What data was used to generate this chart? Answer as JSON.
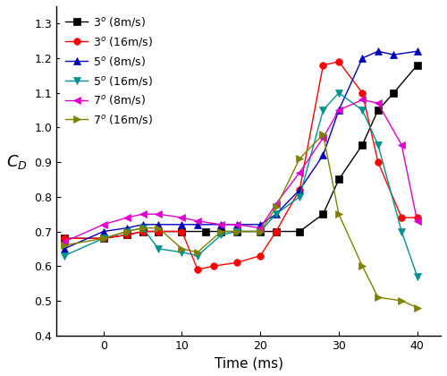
{
  "series": {
    "3deg_8ms": {
      "label": "3$^o$ (8m/s)",
      "color": "#000000",
      "marker": "s",
      "x": [
        -5,
        0,
        3,
        5,
        7,
        10,
        13,
        15,
        17,
        20,
        22,
        25,
        28,
        30,
        33,
        35,
        37,
        40
      ],
      "y": [
        0.68,
        0.68,
        0.69,
        0.7,
        0.7,
        0.7,
        0.7,
        0.7,
        0.7,
        0.7,
        0.7,
        0.7,
        0.75,
        0.85,
        0.95,
        1.05,
        1.1,
        1.18
      ]
    },
    "3deg_16ms": {
      "label": "3$^o$ (16m/s)",
      "color": "#ff0000",
      "marker": "o",
      "x": [
        -5,
        0,
        3,
        5,
        7,
        10,
        12,
        14,
        17,
        20,
        22,
        25,
        28,
        30,
        33,
        35,
        38,
        40
      ],
      "y": [
        0.68,
        0.68,
        0.69,
        0.7,
        0.7,
        0.7,
        0.59,
        0.6,
        0.61,
        0.63,
        0.7,
        0.82,
        1.18,
        1.19,
        1.1,
        0.9,
        0.74,
        0.74
      ]
    },
    "5deg_8ms": {
      "label": "5$^o$ (8m/s)",
      "color": "#0000bb",
      "marker": "^",
      "x": [
        -5,
        0,
        3,
        5,
        7,
        10,
        12,
        15,
        17,
        20,
        22,
        25,
        28,
        30,
        33,
        35,
        37,
        40
      ],
      "y": [
        0.65,
        0.7,
        0.71,
        0.72,
        0.72,
        0.72,
        0.72,
        0.72,
        0.72,
        0.72,
        0.75,
        0.82,
        0.92,
        1.05,
        1.2,
        1.22,
        1.21,
        1.22
      ]
    },
    "5deg_16ms": {
      "label": "5$^o$ (16m/s)",
      "color": "#009090",
      "marker": "v",
      "x": [
        -5,
        0,
        3,
        5,
        7,
        10,
        12,
        15,
        17,
        20,
        22,
        25,
        28,
        30,
        33,
        35,
        38,
        40
      ],
      "y": [
        0.63,
        0.68,
        0.7,
        0.71,
        0.65,
        0.64,
        0.63,
        0.69,
        0.7,
        0.7,
        0.75,
        0.8,
        1.05,
        1.1,
        1.05,
        0.95,
        0.7,
        0.57
      ]
    },
    "7deg_8ms": {
      "label": "7$^o$ (8m/s)",
      "color": "#dd00cc",
      "marker": "<",
      "x": [
        -5,
        0,
        3,
        5,
        7,
        10,
        12,
        15,
        17,
        20,
        22,
        25,
        28,
        30,
        33,
        35,
        38,
        40
      ],
      "y": [
        0.67,
        0.72,
        0.74,
        0.75,
        0.75,
        0.74,
        0.73,
        0.72,
        0.72,
        0.71,
        0.78,
        0.87,
        0.97,
        1.05,
        1.08,
        1.07,
        0.95,
        0.73
      ]
    },
    "7deg_16ms": {
      "label": "7$^o$ (16m/s)",
      "color": "#808000",
      "marker": ">",
      "x": [
        -5,
        0,
        3,
        5,
        7,
        10,
        12,
        15,
        17,
        20,
        22,
        25,
        28,
        30,
        33,
        35,
        38,
        40
      ],
      "y": [
        0.66,
        0.68,
        0.7,
        0.71,
        0.71,
        0.65,
        0.64,
        0.7,
        0.7,
        0.7,
        0.77,
        0.91,
        0.98,
        0.75,
        0.6,
        0.51,
        0.5,
        0.48
      ]
    }
  },
  "xlim": [
    -6,
    43
  ],
  "ylim": [
    0.4,
    1.35
  ],
  "xlabel": "Time (ms)",
  "ylabel": "$C_D$",
  "xticks": [
    0,
    10,
    20,
    30,
    40
  ],
  "yticks": [
    0.4,
    0.5,
    0.6,
    0.7,
    0.8,
    0.9,
    1.0,
    1.1,
    1.2,
    1.3
  ],
  "figsize": [
    5.0,
    4.2
  ],
  "dpi": 100
}
